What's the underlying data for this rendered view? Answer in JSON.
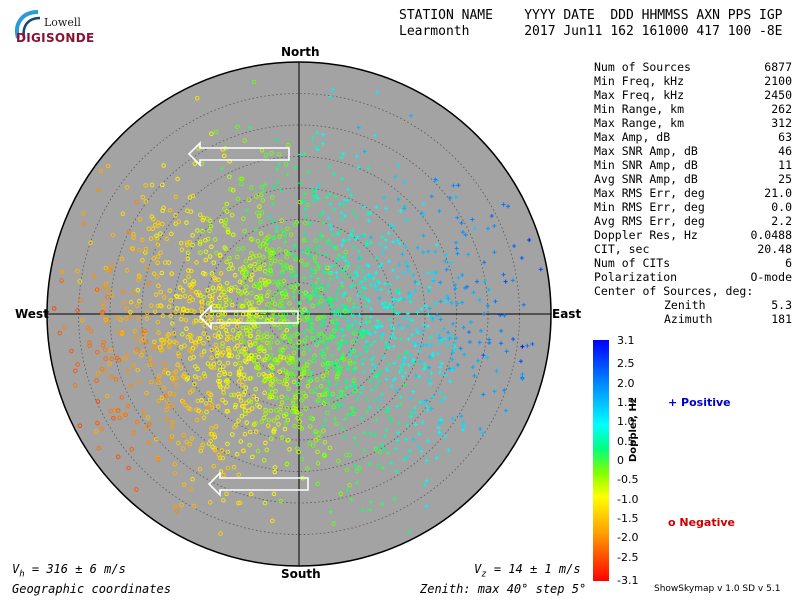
{
  "logo": {
    "line1": "Lowell",
    "line2": "DIGISONDE"
  },
  "header": {
    "row1": "STATION NAME    YYYY DATE  DDD HHMMSS AXN PPS IGP",
    "row2": "Learmonth       2017 Jun11 162 161000 417 100 -8E"
  },
  "stats": [
    {
      "label": "Num of Sources",
      "value": "6877"
    },
    {
      "label": "Min Freq, kHz",
      "value": "2100"
    },
    {
      "label": "Max Freq, kHz",
      "value": "2450"
    },
    {
      "label": "Min Range, km",
      "value": "262"
    },
    {
      "label": "Max Range, km",
      "value": "312"
    },
    {
      "label": "Max Amp, dB",
      "value": "63"
    },
    {
      "label": "Max SNR Amp, dB",
      "value": "46"
    },
    {
      "label": "Min SNR Amp, dB",
      "value": "11"
    },
    {
      "label": "Avg SNR Amp, dB",
      "value": "25"
    },
    {
      "label": "Max RMS Err, deg",
      "value": "21.0"
    },
    {
      "label": "Min RMS Err, deg",
      "value": "0.0"
    },
    {
      "label": "Avg RMS Err, deg",
      "value": "2.2"
    },
    {
      "label": "Doppler Res, Hz",
      "value": "0.0488"
    },
    {
      "label": "CIT, sec",
      "value": "20.48"
    },
    {
      "label": "Num of CITs",
      "value": "6"
    },
    {
      "label": "Polarization",
      "value": "O-mode"
    }
  ],
  "center_of_sources": {
    "label": "Center of Sources, deg:",
    "zenith_label": "Zenith",
    "zenith_value": "5.3",
    "azimuth_label": "Azimuth",
    "azimuth_value": "181"
  },
  "compass": {
    "north": "North",
    "south": "South",
    "east": "East",
    "west": "West"
  },
  "footer": {
    "vh": "V",
    "vh_sub": "h",
    "vh_val": " = 316 ± 6 m/s",
    "vz": "V",
    "vz_sub": "z",
    "vz_val": " = 14 ± 1 m/s",
    "coords": "Geographic coordinates",
    "zenith": "Zenith: max 40°  step 5°",
    "version": "ShowSkymap v 1.0   SD v 5.1"
  },
  "legend": {
    "positive": "+ Positive",
    "negative": "o Negative"
  },
  "colorbar": {
    "label": "Doppler, Hz",
    "ticks": [
      "3.1",
      "2.5",
      "2.0",
      "1.5",
      "1.0",
      "0.5",
      "0",
      "-0.5",
      "-1.0",
      "-1.5",
      "-2.0",
      "-2.5",
      "-3.1"
    ]
  },
  "colors": {
    "disk": "#a3a3a3",
    "positive_marker": "#0000cc",
    "negative_marker": "#cc0000",
    "logo": "#8a1232"
  },
  "chart_data": {
    "type": "scatter",
    "projection": "polar skymap",
    "zenith_max_deg": 40,
    "zenith_step_deg": 5,
    "num_sources": 6877,
    "center_of_sources": {
      "zenith_deg": 5.3,
      "azimuth_deg": 181
    },
    "doppler_range_hz": [
      -3.1,
      3.1
    ],
    "series": [
      {
        "name": "Positive",
        "marker": "+",
        "doppler_hz_typical": [
          0.3,
          1.3
        ],
        "azimuth_region": "east / north-east"
      },
      {
        "name": "Negative",
        "marker": "o",
        "doppler_hz_typical": [
          -1.3,
          -0.3
        ],
        "azimuth_region": "west / south-west"
      }
    ],
    "velocity_arrows": [
      {
        "direction": "west",
        "position": "north"
      },
      {
        "direction": "west",
        "position": "center"
      },
      {
        "direction": "west",
        "position": "south"
      }
    ],
    "vh_m_s": 316,
    "vh_err": 6,
    "vz_m_s": 14,
    "vz_err": 1
  }
}
